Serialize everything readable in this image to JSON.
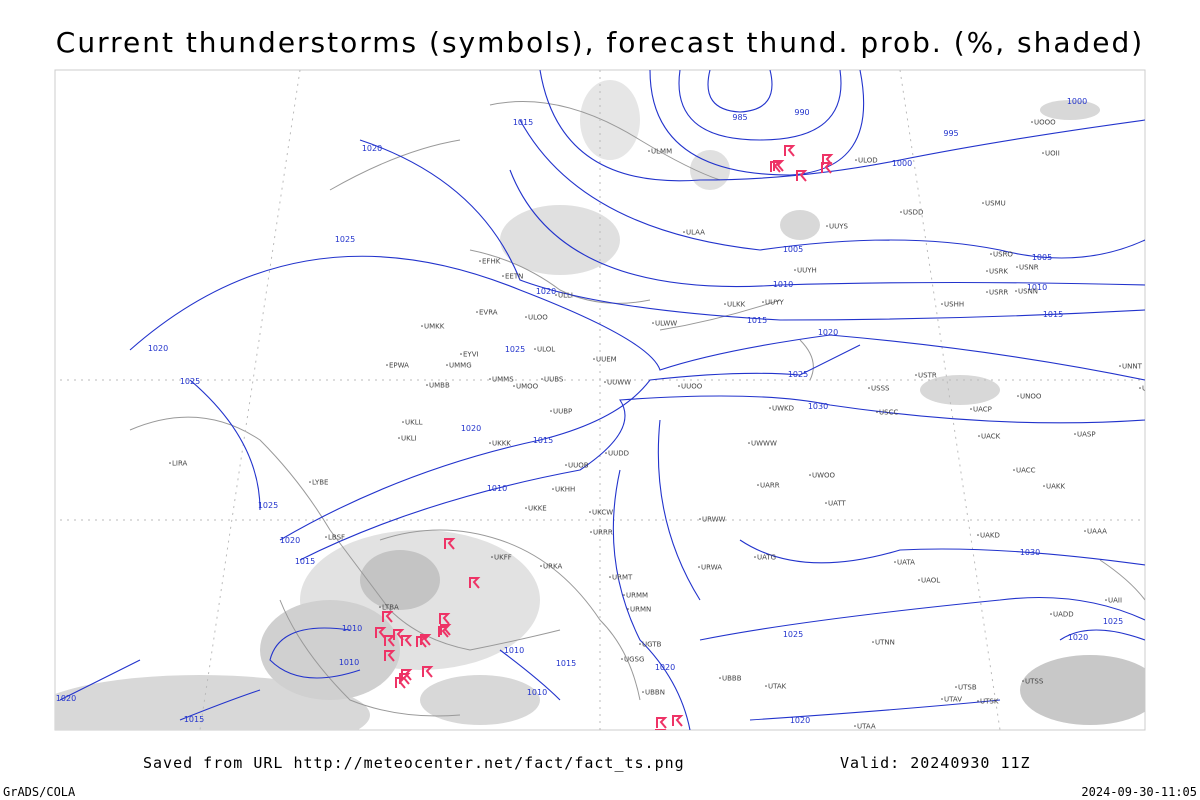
{
  "header": {
    "title": "Current thunderstorms (symbols), forecast thund. prob. (%, shaded)"
  },
  "isobar_labels": [
    "985",
    "990",
    "995",
    "1000",
    "1000",
    "1005",
    "1005",
    "1010",
    "1010",
    "1015",
    "1015",
    "1015",
    "1020",
    "1025",
    "1020",
    "1025",
    "1020",
    "1025",
    "1020",
    "1025",
    "1030",
    "1020",
    "1015",
    "1010",
    "1025",
    "1020",
    "1015",
    "1010",
    "1010",
    "1010",
    "1015",
    "1010",
    "1020",
    "1020",
    "1015",
    "1020",
    "1025",
    "1030",
    "1025",
    "1020"
  ],
  "station_labels": [
    "ULAA",
    "EFHK",
    "EETN",
    "ULLI",
    "EVRA",
    "ULOO",
    "UUYY",
    "ULKK",
    "ULWW",
    "UMKK",
    "EYVI",
    "ULOL",
    "UUEM",
    "UMMG",
    "EPWA",
    "UMBB",
    "UMMS",
    "UMOO",
    "UUBS",
    "UUWW",
    "UUOO",
    "UWKD",
    "UKLL",
    "UKLI",
    "UUBP",
    "UKKK",
    "UUOB",
    "UUDD",
    "UKHH",
    "UKKE",
    "UKCW",
    "URRR",
    "UKFF",
    "URKA",
    "URMT",
    "URMM",
    "URMN",
    "UGTB",
    "UGSG",
    "UBBB",
    "UBBN",
    "URWA",
    "URWW",
    "UWWW",
    "UWOO",
    "UATT",
    "UARR",
    "UATG",
    "UATA",
    "UAOL",
    "UACC",
    "UAKK",
    "UAKD",
    "UAAA",
    "UAII",
    "UADD",
    "UTNN",
    "UTAK",
    "UTAA",
    "UTSS",
    "UTSB",
    "UTAV",
    "UTSK",
    "USSS",
    "USCC",
    "UACP",
    "UACK",
    "UASP",
    "UNOO",
    "USTR",
    "UNBB",
    "UNNT",
    "USHH",
    "USRR",
    "USNN",
    "USRK",
    "USNR",
    "USRO",
    "USDD",
    "USMU",
    "ULOD",
    "ULMM",
    "UUYS",
    "UUYH",
    "UOII",
    "UOOO",
    "LIRA",
    "LYBE",
    "LBSF",
    "LTBA"
  ],
  "footer": {
    "source": "Saved from URL http://meteocenter.net/fact/fact_ts.png",
    "valid": "Valid: 20240930 11Z",
    "credit": "GrADS/COLA",
    "timestamp": "2024-09-30-11:05"
  }
}
